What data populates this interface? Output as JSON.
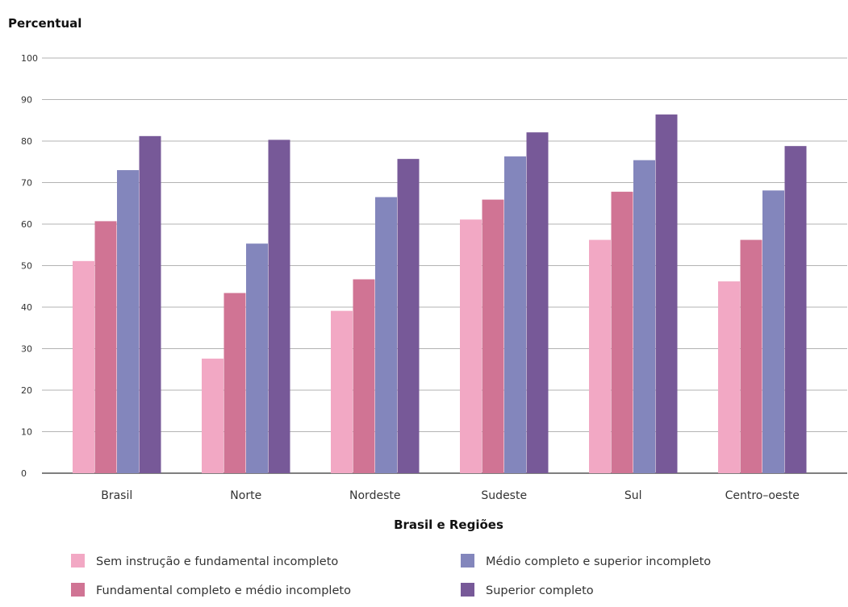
{
  "chart_data": {
    "type": "bar",
    "ylabel": "Percentual",
    "xlabel": "Brasil e Regiões",
    "ylim": [
      0,
      100
    ],
    "yticks": [
      0,
      10,
      20,
      30,
      40,
      50,
      60,
      70,
      80,
      90,
      100
    ],
    "grid": true,
    "legend_position": "bottom",
    "categories": [
      "Brasil",
      "Norte",
      "Nordeste",
      "Sudeste",
      "Sul",
      "Centro–oeste"
    ],
    "series": [
      {
        "name": "Sem instrução e fundamental incompleto",
        "color": "#f2a8c4",
        "values": [
          51.1,
          27.6,
          39.1,
          61.1,
          56.2,
          46.2
        ]
      },
      {
        "name": "Fundamental completo e médio incompleto",
        "color": "#d07494",
        "values": [
          60.7,
          43.4,
          46.7,
          65.9,
          67.8,
          56.2
        ]
      },
      {
        "name": "Médio completo e superior incompleto",
        "color": "#8386bc",
        "values": [
          73.0,
          55.3,
          66.5,
          76.3,
          75.4,
          68.1
        ]
      },
      {
        "name": "Superior completo",
        "color": "#775998",
        "values": [
          81.2,
          80.3,
          75.7,
          82.1,
          86.4,
          78.8
        ]
      }
    ]
  }
}
